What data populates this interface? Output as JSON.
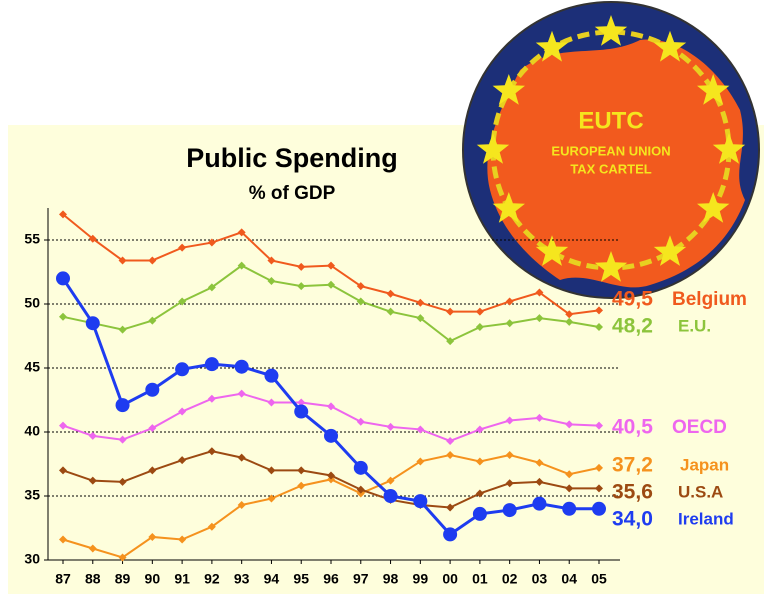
{
  "chart_data": {
    "type": "line",
    "title": "Public Spending",
    "subtitle": "% of GDP",
    "categories": [
      "87",
      "88",
      "89",
      "90",
      "91",
      "92",
      "93",
      "94",
      "95",
      "96",
      "97",
      "98",
      "99",
      "00",
      "01",
      "02",
      "03",
      "04",
      "05"
    ],
    "ylim": [
      30,
      57.5
    ],
    "yticks": [
      30,
      35,
      40,
      45,
      50,
      55
    ],
    "grid": true,
    "series": [
      {
        "name": "Belgium",
        "color": "#f05a1e",
        "values": [
          57.0,
          55.1,
          53.4,
          53.4,
          54.4,
          54.8,
          55.6,
          53.4,
          52.9,
          53.0,
          51.4,
          50.8,
          50.1,
          49.4,
          49.4,
          50.2,
          50.9,
          49.2,
          49.5
        ],
        "value_labels": [
          null,
          null,
          null,
          null,
          null,
          null,
          null,
          null,
          null,
          null,
          null,
          null,
          null,
          null,
          null,
          null,
          null,
          null,
          "49,5"
        ]
      },
      {
        "name": "E.U.",
        "color": "#8cc43c",
        "values": [
          49.0,
          48.5,
          48.0,
          48.7,
          50.2,
          51.3,
          53.0,
          51.8,
          51.4,
          51.5,
          50.2,
          49.4,
          48.9,
          47.1,
          48.2,
          48.5,
          48.9,
          48.6,
          48.2
        ],
        "value_labels": [
          null,
          null,
          null,
          null,
          null,
          null,
          null,
          null,
          null,
          null,
          null,
          null,
          null,
          null,
          null,
          null,
          null,
          null,
          "48,2"
        ]
      },
      {
        "name": "OECD",
        "color": "#ee66ee",
        "values": [
          40.5,
          39.7,
          39.4,
          40.3,
          41.6,
          42.6,
          43.0,
          42.3,
          42.3,
          42.0,
          40.8,
          40.4,
          40.2,
          39.3,
          40.2,
          40.9,
          41.1,
          40.6,
          40.5
        ],
        "value_labels": [
          null,
          null,
          null,
          null,
          null,
          null,
          null,
          null,
          null,
          null,
          null,
          null,
          null,
          null,
          null,
          null,
          null,
          null,
          "40,5"
        ]
      },
      {
        "name": "Japan",
        "color": "#f5921e",
        "values": [
          31.6,
          30.9,
          30.2,
          31.8,
          31.6,
          32.6,
          34.3,
          34.8,
          35.8,
          36.3,
          35.2,
          36.2,
          37.7,
          38.2,
          37.7,
          38.2,
          37.6,
          36.7,
          37.2
        ],
        "value_labels": [
          null,
          null,
          null,
          null,
          null,
          null,
          null,
          null,
          null,
          null,
          null,
          null,
          null,
          null,
          null,
          null,
          null,
          null,
          "37,2"
        ]
      },
      {
        "name": "U.S.A",
        "color": "#9c4a12",
        "values": [
          37.0,
          36.2,
          36.1,
          37.0,
          37.8,
          38.5,
          38.0,
          37.0,
          37.0,
          36.6,
          35.5,
          34.7,
          34.3,
          34.1,
          35.2,
          36.0,
          36.1,
          35.6,
          35.6
        ],
        "value_labels": [
          null,
          null,
          null,
          null,
          null,
          null,
          null,
          null,
          null,
          null,
          null,
          null,
          null,
          null,
          null,
          null,
          null,
          null,
          "35,6"
        ]
      },
      {
        "name": "Ireland",
        "color": "#1e3cf0",
        "values": [
          52.0,
          48.5,
          42.1,
          43.3,
          44.9,
          45.3,
          45.1,
          44.4,
          41.6,
          39.7,
          37.2,
          35.0,
          34.6,
          32.0,
          33.6,
          33.9,
          34.4,
          34.0,
          34.0
        ],
        "value_labels": [
          null,
          null,
          null,
          null,
          null,
          null,
          null,
          null,
          null,
          null,
          null,
          null,
          null,
          null,
          null,
          null,
          null,
          null,
          "34,0"
        ]
      }
    ]
  },
  "logo": {
    "title": "EUTC",
    "line1": "EUROPEAN UNION",
    "line2": "TAX CARTEL"
  }
}
